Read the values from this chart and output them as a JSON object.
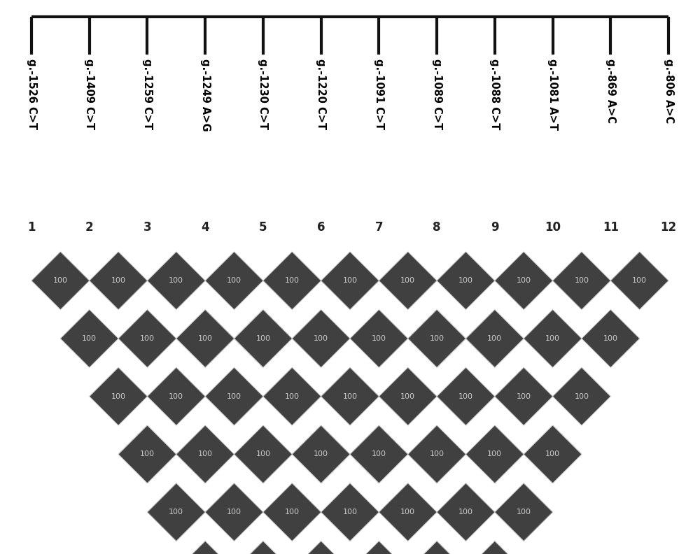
{
  "n_markers": 12,
  "labels": [
    "g.-1526 C>T",
    "g.-1409 C>T",
    "g.-1259 C>T",
    "g.-1249 A>G",
    "g.-1230 C>T",
    "g.-1220 C>T",
    "g.-1091 C>T",
    "g.-1089 C>T",
    "g.-1088 C>T",
    "g.-1081 A>T",
    "g.-869 A>C",
    "g.-806 A>C"
  ],
  "ld_value": "100",
  "diamond_color": "#404040",
  "diamond_edge_color": "#c0c0c0",
  "text_color": "#cccccc",
  "header_bg": "#ffffff",
  "plot_bg": "#c8c8c8",
  "number_label_color": "#222222",
  "ruler_color": "#111111",
  "fig_width": 10.0,
  "fig_height": 7.92,
  "ruler_lw": 3.0,
  "diamond_lw": 0.7,
  "label_fontsize": 10.5,
  "number_fontsize": 12,
  "value_fontsize": 8.0
}
